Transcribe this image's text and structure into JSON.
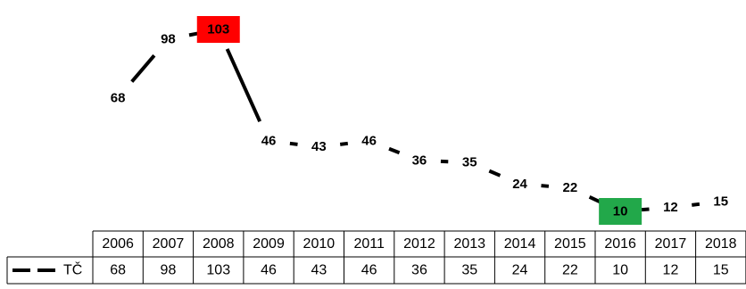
{
  "chart_data": {
    "type": "line",
    "categories": [
      "2006",
      "2007",
      "2008",
      "2009",
      "2010",
      "2011",
      "2012",
      "2013",
      "2014",
      "2015",
      "2016",
      "2017",
      "2018"
    ],
    "series": [
      {
        "name": "TČ",
        "values": [
          68,
          98,
          103,
          46,
          43,
          46,
          36,
          35,
          24,
          22,
          10,
          12,
          15
        ],
        "color": "#000000",
        "line_style": "dashed"
      }
    ],
    "highlights": [
      {
        "category": "2008",
        "color": "#ff0000"
      },
      {
        "category": "2016",
        "color": "#22a84a"
      }
    ],
    "data_table": true,
    "grid": false,
    "legend": "in data table"
  }
}
